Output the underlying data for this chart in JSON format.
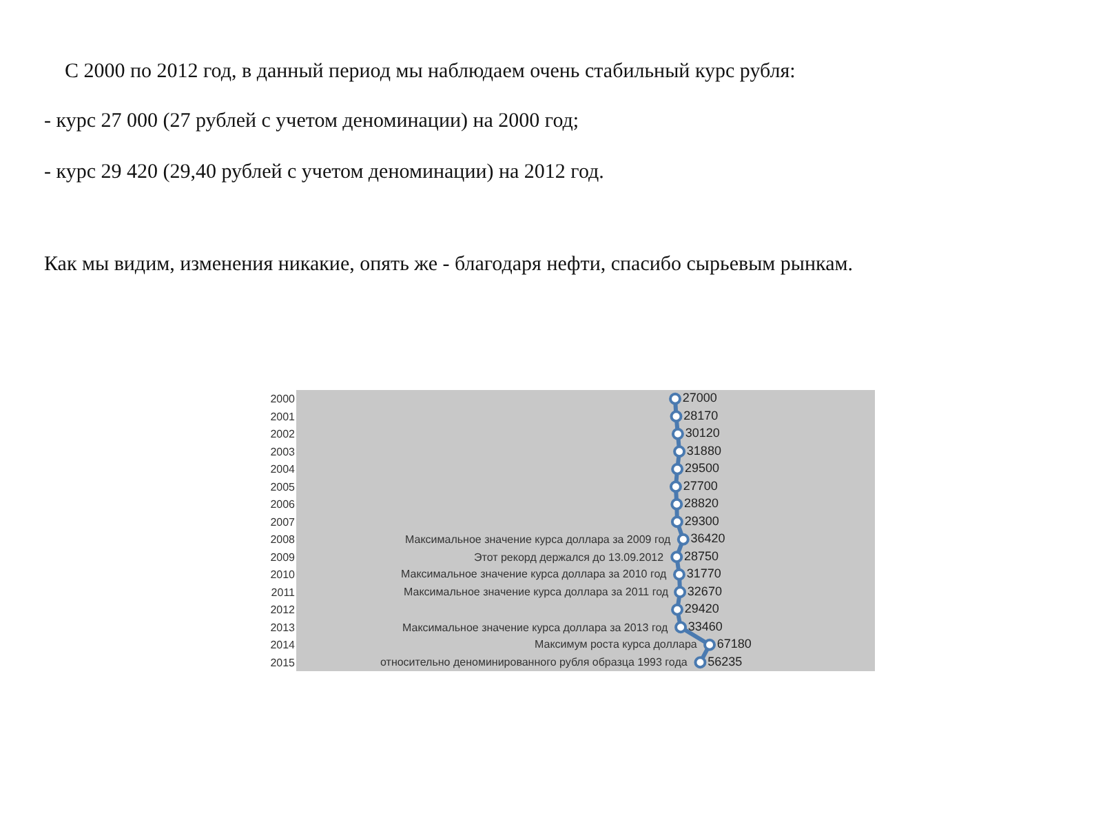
{
  "chart_data": {
    "type": "line",
    "orientation": "horizontal",
    "title": "С 2000 по 2012 год, в данный период мы наблюдаем очень стабильный курс рубля:",
    "categories": [
      "2000",
      "2001",
      "2002",
      "2003",
      "2004",
      "2005",
      "2006",
      "2007",
      "2008",
      "2009",
      "2010",
      "2011",
      "2012",
      "2013",
      "2014",
      "2015"
    ],
    "values": [
      27000,
      28170,
      30120,
      31880,
      29500,
      27700,
      28820,
      29300,
      36420,
      28750,
      31770,
      32670,
      29420,
      33460,
      67180,
      56235
    ],
    "color": "#4a7ab0",
    "marker": "circle",
    "data_labels": true,
    "xlim": [
      -415000,
      260000
    ],
    "tick_labels": "y",
    "annotations": [
      "- курс 27 000 (27 рублей с учетом деноминации) на 2000 год;",
      "- курс 29 420 (29,40 рублей с учетом деноминации) на 2012 год.",
      "Как мы видим, изменения никакие, опять же - благодаря нефти, спасибо сырьевым рынкам.",
      {
        "text": "Максимальное значение курса доллара за 2009 год",
        "x": 36420,
        "y": "2008"
      },
      {
        "text": "Этот рекорд держался до 13.09.2012",
        "x": 28750,
        "y": "2009"
      },
      {
        "text": "Максимальное значение курса доллара за 2010 год",
        "x": 31770,
        "y": "2010"
      },
      {
        "text": "Максимальное значение курса доллара за 2011 год",
        "x": 32670,
        "y": "2011"
      },
      {
        "text": "Максимальное значение курса доллара за 2013 год",
        "x": 33460,
        "y": "2013"
      },
      {
        "text": "Максимум роста курса доллара",
        "x": 67180,
        "y": "2014"
      },
      {
        "text": "относительно деноминированного рубля образца 1993 года",
        "x": 56235,
        "y": "2015"
      }
    ]
  }
}
